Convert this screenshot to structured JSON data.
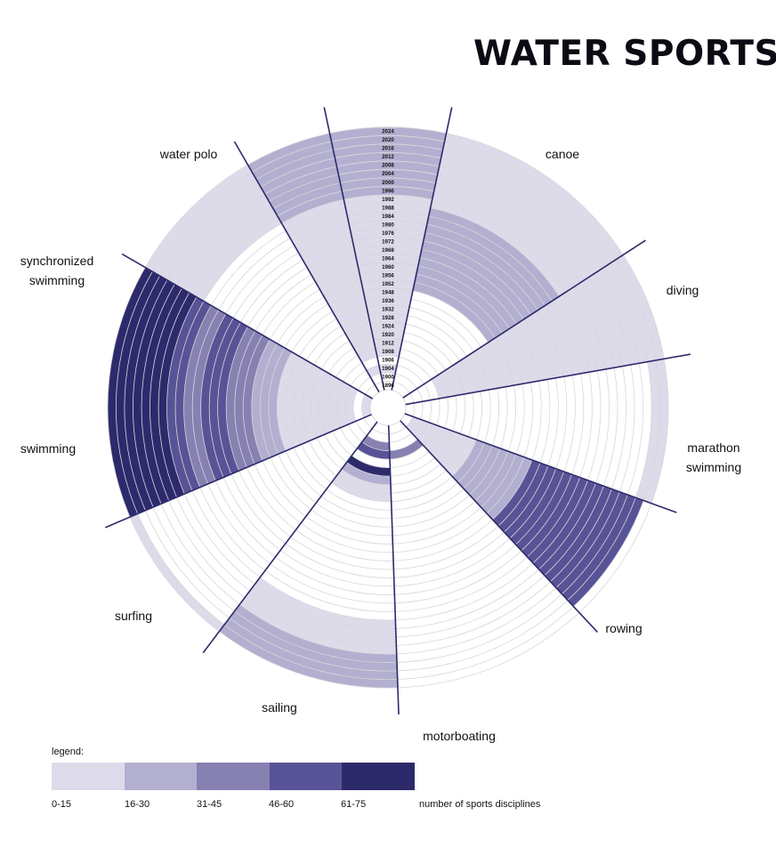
{
  "title": "WATER SPORTS",
  "chart_data": {
    "type": "radial",
    "title": "WATER SPORTS",
    "rings_note": "",
    "years": [
      1896,
      1900,
      1904,
      1906,
      1908,
      1912,
      1920,
      1924,
      1928,
      1932,
      1936,
      1948,
      1952,
      1956,
      1960,
      1964,
      1968,
      1972,
      1976,
      1980,
      1984,
      1988,
      1992,
      1996,
      2000,
      2004,
      2008,
      2012,
      2016,
      2020,
      2024
    ],
    "year_labels": [
      "2024",
      "2020",
      "2016",
      "2012",
      "2008",
      "2004",
      "2000",
      "1996",
      "1992",
      "1988",
      "1984",
      "1980",
      "1976",
      "1972",
      "1968",
      "1964",
      "1960",
      "1956",
      "1952",
      "1948",
      "1936",
      "1932",
      "1928",
      "1924",
      "1920",
      "1912",
      "1908",
      "1906",
      "1904",
      "1900",
      "1896"
    ],
    "categories": [
      {
        "name": "canoe",
        "bins": [
          [
            12,
            21,
            2
          ],
          [
            22,
            30,
            1
          ]
        ]
      },
      {
        "name": "diving",
        "bins": [
          [
            4,
            30,
            1
          ]
        ]
      },
      {
        "name": "marathon swimming",
        "bins": [
          [
            29,
            30,
            1
          ]
        ]
      },
      {
        "name": "rowing",
        "bins": [
          [
            1,
            8,
            1
          ],
          [
            9,
            15,
            2
          ],
          [
            16,
            29,
            4
          ]
        ]
      },
      {
        "name": "motorboating",
        "bins": [
          [
            3,
            3,
            3
          ]
        ]
      },
      {
        "name": "sailing",
        "bins": [
          [
            2,
            2,
            3
          ],
          [
            3,
            3,
            4
          ],
          [
            5,
            5,
            5
          ],
          [
            6,
            6,
            2
          ],
          [
            7,
            8,
            1
          ],
          [
            23,
            26,
            1
          ],
          [
            27,
            30,
            2
          ]
        ]
      },
      {
        "name": "surfing",
        "bins": [
          [
            30,
            30,
            1
          ]
        ]
      },
      {
        "name": "swimming",
        "bins": [
          [
            0,
            0,
            1
          ],
          [
            2,
            10,
            1
          ],
          [
            11,
            13,
            2
          ],
          [
            14,
            16,
            3
          ],
          [
            17,
            19,
            4
          ],
          [
            20,
            21,
            3
          ],
          [
            22,
            23,
            4
          ],
          [
            24,
            30,
            5
          ]
        ]
      },
      {
        "name": "synchronized swimming",
        "bins": [
          [
            23,
            30,
            1
          ]
        ]
      },
      {
        "name": "water polo",
        "bins": [
          [
            2,
            2,
            1
          ],
          [
            4,
            22,
            1
          ],
          [
            23,
            30,
            2
          ]
        ]
      }
    ],
    "legend": {
      "title": "legend:",
      "bins": [
        "0-15",
        "16-30",
        "31-45",
        "46-60",
        "61-75"
      ],
      "caption": "number of sports disciplines",
      "colors": [
        "#dddbea",
        "#b3afd0",
        "#8781b2",
        "#585396",
        "#2d2a6c"
      ]
    },
    "label_lines": {
      "canoe": [
        "canoe"
      ],
      "diving": [
        "diving"
      ],
      "marathon swimming": [
        "marathon",
        "swimming"
      ],
      "rowing": [
        "rowing"
      ],
      "motorboating": [
        "motorboating"
      ],
      "sailing": [
        "sailing"
      ],
      "surfing": [
        "surfing"
      ],
      "swimming": [
        "swimming"
      ],
      "synchronized swimming": [
        "synchronized",
        "swimming"
      ],
      "water polo": [
        "water polo"
      ]
    }
  }
}
